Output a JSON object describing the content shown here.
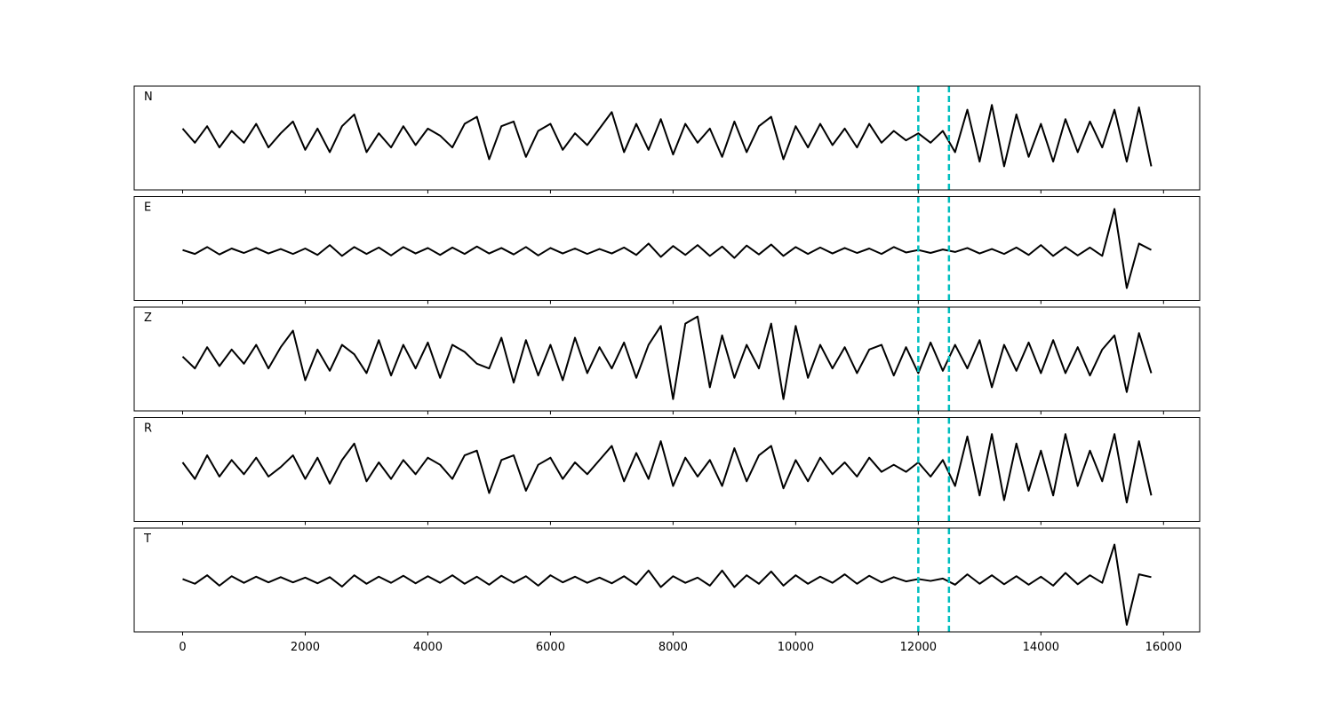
{
  "chart_data": {
    "type": "line",
    "line_color": "#000000",
    "vline_color": "#00bfbf",
    "xlim": [
      -790,
      16590
    ],
    "xticks": [
      0,
      2000,
      4000,
      6000,
      8000,
      10000,
      12000,
      14000,
      16000
    ],
    "vlines": [
      12000,
      12500
    ],
    "x": [
      0,
      200,
      400,
      600,
      800,
      1000,
      1200,
      1400,
      1600,
      1800,
      2000,
      2200,
      2400,
      2600,
      2800,
      3000,
      3200,
      3400,
      3600,
      3800,
      4000,
      4200,
      4400,
      4600,
      4800,
      5000,
      5200,
      5400,
      5600,
      5800,
      6000,
      6200,
      6400,
      6600,
      6800,
      7000,
      7200,
      7400,
      7600,
      7800,
      8000,
      8200,
      8400,
      8600,
      8800,
      9000,
      9200,
      9400,
      9600,
      9800,
      10000,
      10200,
      10400,
      10600,
      10800,
      11000,
      11200,
      11400,
      11600,
      11800,
      12000,
      12200,
      12400,
      12600,
      12800,
      13000,
      13200,
      13400,
      13600,
      13800,
      14000,
      14200,
      14400,
      14600,
      14800,
      15000,
      15200,
      15400,
      15600,
      15800
    ],
    "series": [
      {
        "name": "N",
        "ylim": [
          -1.1,
          1.1
        ],
        "values": [
          0.2,
          -0.1,
          0.25,
          -0.2,
          0.15,
          -0.1,
          0.3,
          -0.2,
          0.1,
          0.35,
          -0.25,
          0.2,
          -0.3,
          0.25,
          0.5,
          -0.3,
          0.1,
          -0.2,
          0.25,
          -0.15,
          0.2,
          0.05,
          -0.2,
          0.3,
          0.45,
          -0.45,
          0.25,
          0.35,
          -0.4,
          0.15,
          0.3,
          -0.25,
          0.1,
          -0.15,
          0.2,
          0.55,
          -0.3,
          0.3,
          -0.25,
          0.4,
          -0.35,
          0.3,
          -0.1,
          0.2,
          -0.4,
          0.35,
          -0.3,
          0.25,
          0.45,
          -0.45,
          0.25,
          -0.2,
          0.3,
          -0.15,
          0.2,
          -0.2,
          0.3,
          -0.1,
          0.15,
          -0.05,
          0.1,
          -0.1,
          0.15,
          -0.3,
          0.6,
          -0.5,
          0.7,
          -0.6,
          0.5,
          -0.4,
          0.3,
          -0.5,
          0.4,
          -0.3,
          0.35,
          -0.2,
          0.6,
          -0.5,
          0.65,
          -0.6
        ]
      },
      {
        "name": "E",
        "ylim": [
          -1.0,
          1.1
        ],
        "values": [
          0.02,
          -0.06,
          0.08,
          -0.07,
          0.05,
          -0.04,
          0.06,
          -0.05,
          0.04,
          -0.06,
          0.05,
          -0.08,
          0.12,
          -0.1,
          0.08,
          -0.06,
          0.07,
          -0.09,
          0.08,
          -0.05,
          0.06,
          -0.08,
          0.07,
          -0.06,
          0.09,
          -0.05,
          0.06,
          -0.07,
          0.08,
          -0.09,
          0.06,
          -0.05,
          0.05,
          -0.06,
          0.04,
          -0.05,
          0.07,
          -0.08,
          0.15,
          -0.12,
          0.1,
          -0.08,
          0.12,
          -0.1,
          0.09,
          -0.14,
          0.11,
          -0.07,
          0.13,
          -0.1,
          0.08,
          -0.06,
          0.07,
          -0.05,
          0.06,
          -0.04,
          0.05,
          -0.06,
          0.08,
          -0.03,
          0.02,
          -0.04,
          0.03,
          -0.02,
          0.06,
          -0.05,
          0.04,
          -0.06,
          0.07,
          -0.08,
          0.12,
          -0.1,
          0.08,
          -0.09,
          0.07,
          -0.1,
          0.85,
          -0.75,
          0.15,
          0.02
        ]
      },
      {
        "name": "Z",
        "ylim": [
          -1.1,
          1.1
        ],
        "values": [
          0.05,
          -0.2,
          0.25,
          -0.15,
          0.2,
          -0.1,
          0.3,
          -0.2,
          0.25,
          0.6,
          -0.45,
          0.2,
          -0.25,
          0.3,
          0.1,
          -0.3,
          0.4,
          -0.35,
          0.3,
          -0.2,
          0.35,
          -0.4,
          0.3,
          0.15,
          -0.1,
          -0.2,
          0.45,
          -0.5,
          0.4,
          -0.35,
          0.3,
          -0.45,
          0.45,
          -0.3,
          0.25,
          -0.2,
          0.35,
          -0.4,
          0.3,
          0.7,
          -0.85,
          0.75,
          0.9,
          -0.6,
          0.5,
          -0.4,
          0.3,
          -0.2,
          0.75,
          -0.85,
          0.7,
          -0.4,
          0.3,
          -0.2,
          0.25,
          -0.3,
          0.2,
          0.3,
          -0.35,
          0.25,
          -0.3,
          0.35,
          -0.25,
          0.3,
          -0.2,
          0.4,
          -0.6,
          0.3,
          -0.25,
          0.35,
          -0.3,
          0.4,
          -0.3,
          0.25,
          -0.35,
          0.2,
          0.5,
          -0.7,
          0.55,
          -0.3
        ]
      },
      {
        "name": "R",
        "ylim": [
          -1.1,
          1.1
        ],
        "values": [
          0.15,
          -0.2,
          0.3,
          -0.15,
          0.2,
          -0.1,
          0.25,
          -0.15,
          0.05,
          0.3,
          -0.2,
          0.25,
          -0.3,
          0.2,
          0.55,
          -0.25,
          0.15,
          -0.2,
          0.2,
          -0.1,
          0.25,
          0.1,
          -0.2,
          0.3,
          0.4,
          -0.5,
          0.2,
          0.3,
          -0.45,
          0.1,
          0.25,
          -0.2,
          0.15,
          -0.1,
          0.2,
          0.5,
          -0.25,
          0.35,
          -0.2,
          0.6,
          -0.35,
          0.25,
          -0.15,
          0.2,
          -0.35,
          0.45,
          -0.25,
          0.3,
          0.5,
          -0.4,
          0.2,
          -0.25,
          0.25,
          -0.1,
          0.15,
          -0.15,
          0.25,
          -0.05,
          0.1,
          -0.05,
          0.15,
          -0.15,
          0.2,
          -0.35,
          0.7,
          -0.55,
          0.75,
          -0.65,
          0.55,
          -0.45,
          0.4,
          -0.55,
          0.75,
          -0.35,
          0.4,
          -0.25,
          0.75,
          -0.7,
          0.6,
          -0.55
        ]
      },
      {
        "name": "T",
        "ylim": [
          -1.1,
          1.1
        ],
        "values": [
          0.02,
          -0.08,
          0.1,
          -0.12,
          0.08,
          -0.06,
          0.07,
          -0.05,
          0.06,
          -0.05,
          0.05,
          -0.07,
          0.06,
          -0.14,
          0.1,
          -0.08,
          0.07,
          -0.06,
          0.09,
          -0.07,
          0.08,
          -0.06,
          0.1,
          -0.08,
          0.07,
          -0.1,
          0.09,
          -0.06,
          0.08,
          -0.12,
          0.1,
          -0.05,
          0.07,
          -0.06,
          0.05,
          -0.07,
          0.08,
          -0.1,
          0.2,
          -0.15,
          0.08,
          -0.06,
          0.05,
          -0.12,
          0.2,
          -0.15,
          0.1,
          -0.08,
          0.18,
          -0.12,
          0.1,
          -0.08,
          0.07,
          -0.06,
          0.12,
          -0.08,
          0.09,
          -0.05,
          0.06,
          -0.03,
          0.02,
          -0.02,
          0.03,
          -0.1,
          0.12,
          -0.08,
          0.1,
          -0.09,
          0.08,
          -0.1,
          0.07,
          -0.12,
          0.15,
          -0.09,
          0.1,
          -0.06,
          0.75,
          -0.95,
          0.12,
          0.06
        ]
      }
    ]
  }
}
